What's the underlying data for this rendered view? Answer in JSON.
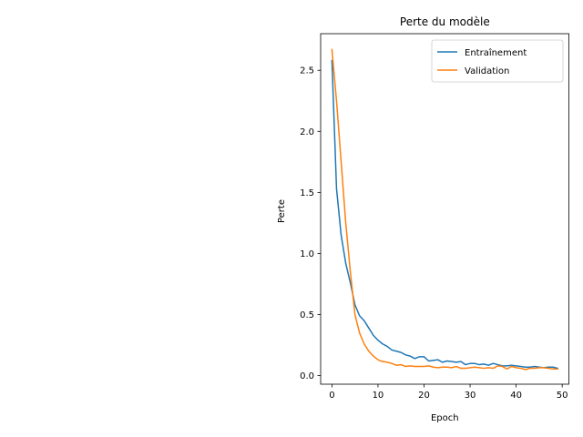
{
  "chart_data": {
    "type": "line",
    "title": "Perte du modèle",
    "xlabel": "Epoch",
    "ylabel": "Perte",
    "xlim": [
      -2.45,
      51.45
    ],
    "ylim": [
      -0.07,
      2.8
    ],
    "xticks": [
      0,
      10,
      20,
      30,
      40,
      50
    ],
    "xtick_labels": [
      "0",
      "10",
      "20",
      "30",
      "40",
      "50"
    ],
    "yticks": [
      0.0,
      0.5,
      1.0,
      1.5,
      2.0,
      2.5
    ],
    "ytick_labels": [
      "0.0",
      "0.5",
      "1.0",
      "1.5",
      "2.0",
      "2.5"
    ],
    "grid": false,
    "legend_position": "top-right",
    "x": [
      0,
      1,
      2,
      3,
      4,
      5,
      6,
      7,
      8,
      9,
      10,
      11,
      12,
      13,
      14,
      15,
      16,
      17,
      18,
      19,
      20,
      21,
      22,
      23,
      24,
      25,
      26,
      27,
      28,
      29,
      30,
      31,
      32,
      33,
      34,
      35,
      36,
      37,
      38,
      39,
      40,
      41,
      42,
      43,
      44,
      45,
      46,
      47,
      48,
      49
    ],
    "series": [
      {
        "name": "Entraînement",
        "color": "#1f77b4",
        "values": [
          2.58,
          1.53,
          1.15,
          0.92,
          0.76,
          0.58,
          0.49,
          0.45,
          0.39,
          0.33,
          0.29,
          0.26,
          0.24,
          0.21,
          0.2,
          0.19,
          0.17,
          0.16,
          0.14,
          0.155,
          0.155,
          0.12,
          0.125,
          0.13,
          0.11,
          0.12,
          0.115,
          0.11,
          0.115,
          0.09,
          0.1,
          0.1,
          0.09,
          0.095,
          0.085,
          0.1,
          0.09,
          0.08,
          0.08,
          0.085,
          0.08,
          0.075,
          0.07,
          0.07,
          0.075,
          0.07,
          0.065,
          0.07,
          0.07,
          0.06
        ]
      },
      {
        "name": "Validation",
        "color": "#ff7f0e",
        "values": [
          2.67,
          2.25,
          1.75,
          1.25,
          0.85,
          0.5,
          0.35,
          0.26,
          0.2,
          0.16,
          0.13,
          0.115,
          0.11,
          0.1,
          0.085,
          0.09,
          0.075,
          0.08,
          0.075,
          0.075,
          0.075,
          0.08,
          0.07,
          0.065,
          0.07,
          0.07,
          0.065,
          0.075,
          0.06,
          0.06,
          0.065,
          0.07,
          0.065,
          0.06,
          0.065,
          0.06,
          0.08,
          0.075,
          0.055,
          0.075,
          0.065,
          0.06,
          0.05,
          0.06,
          0.06,
          0.065,
          0.065,
          0.06,
          0.055,
          0.055
        ]
      }
    ]
  }
}
